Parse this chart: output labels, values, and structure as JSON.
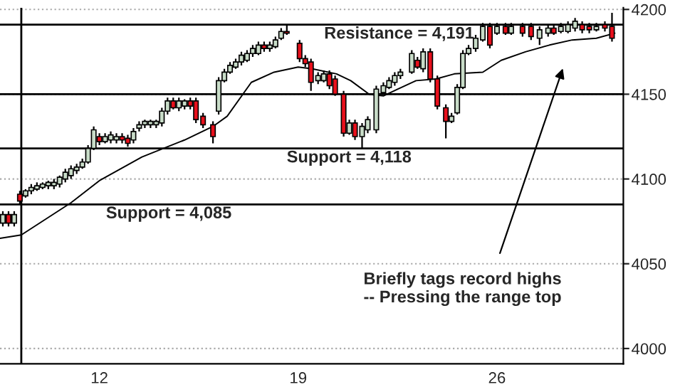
{
  "chart_data": {
    "type": "candlestick",
    "series": [
      {
        "color": "#c8dcc8",
        "x": [
          8.6,
          9.0,
          9.4,
          9.6,
          9.8,
          10.0,
          10.2,
          10.4,
          10.6,
          10.8,
          11.0,
          11.2,
          11.4,
          11.6,
          11.8,
          12.2,
          12.4,
          12.6,
          13.2,
          13.4,
          13.6,
          13.8,
          14.0,
          14.2,
          14.4,
          14.8,
          15.0,
          16.2,
          16.4,
          16.6,
          16.8,
          17.0,
          17.2,
          17.4,
          17.6,
          18.0,
          18.2,
          18.4,
          19.7,
          19.9,
          20.8,
          21.25,
          21.45,
          21.75,
          22.0,
          22.2,
          22.4,
          22.6,
          23.0,
          23.4,
          24.4,
          24.6,
          24.8,
          25.0,
          25.25,
          25.5,
          26.0,
          26.5,
          27.5,
          27.8,
          28.25,
          28.5,
          28.75,
          29.5
        ],
        "ohlc": [
          [
            4074,
            4081,
            4072,
            4079
          ],
          [
            4074,
            4081,
            4072,
            4079
          ],
          [
            4090,
            4094,
            4089,
            4093
          ],
          [
            4093,
            4097,
            4091,
            4095
          ],
          [
            4094,
            4098,
            4093,
            4096
          ],
          [
            4095,
            4098,
            4094,
            4097
          ],
          [
            4096,
            4099,
            4094,
            4098
          ],
          [
            4096,
            4100,
            4094,
            4098
          ],
          [
            4097,
            4102,
            4095,
            4101
          ],
          [
            4100,
            4106,
            4098,
            4104
          ],
          [
            4102,
            4108,
            4100,
            4106
          ],
          [
            4105,
            4109,
            4103,
            4107
          ],
          [
            4107,
            4112,
            4106,
            4110
          ],
          [
            4110,
            4120,
            4109,
            4118
          ],
          [
            4118,
            4131,
            4117,
            4129
          ],
          [
            4122,
            4127,
            4121,
            4125
          ],
          [
            4123,
            4128,
            4121,
            4126
          ],
          [
            4123,
            4127,
            4121,
            4125
          ],
          [
            4123,
            4130,
            4121,
            4128
          ],
          [
            4130,
            4134,
            4128,
            4132
          ],
          [
            4132,
            4135,
            4130,
            4134
          ],
          [
            4132,
            4135,
            4130,
            4134
          ],
          [
            4132,
            4135,
            4130,
            4134
          ],
          [
            4133,
            4142,
            4131,
            4140
          ],
          [
            4140,
            4148,
            4138,
            4146
          ],
          [
            4142,
            4148,
            4140,
            4146
          ],
          [
            4143,
            4147,
            4141,
            4146
          ],
          [
            4140,
            4160,
            4138,
            4158
          ],
          [
            4158,
            4165,
            4157,
            4163
          ],
          [
            4163,
            4169,
            4162,
            4167
          ],
          [
            4166,
            4171,
            4165,
            4169
          ],
          [
            4169,
            4175,
            4167,
            4173
          ],
          [
            4170,
            4176,
            4169,
            4174
          ],
          [
            4174,
            4179,
            4172,
            4177
          ],
          [
            4174,
            4181,
            4173,
            4179
          ],
          [
            4177,
            4181,
            4175,
            4179
          ],
          [
            4178,
            4184,
            4177,
            4182
          ],
          [
            4183,
            4189,
            4182,
            4187
          ],
          [
            4158,
            4163,
            4156,
            4161
          ],
          [
            4158,
            4164,
            4157,
            4162
          ],
          [
            4127,
            4135,
            4126,
            4133
          ],
          [
            4125,
            4133,
            4118,
            4131
          ],
          [
            4129,
            4137,
            4127,
            4135
          ],
          [
            4129,
            4155,
            4127,
            4153
          ],
          [
            4151,
            4157,
            4150,
            4155
          ],
          [
            4154,
            4160,
            4153,
            4158
          ],
          [
            4157,
            4163,
            4155,
            4161
          ],
          [
            4161,
            4165,
            4159,
            4163
          ],
          [
            4163,
            4176,
            4162,
            4174
          ],
          [
            4165,
            4177,
            4163,
            4175
          ],
          [
            4134,
            4139,
            4133,
            4137
          ],
          [
            4139,
            4156,
            4138,
            4154
          ],
          [
            4154,
            4176,
            4153,
            4174
          ],
          [
            4174,
            4179,
            4173,
            4177
          ],
          [
            4177,
            4185,
            4175,
            4183
          ],
          [
            4182,
            4192,
            4181,
            4190
          ],
          [
            4186,
            4192,
            4185,
            4190
          ],
          [
            4186,
            4192,
            4185,
            4190
          ],
          [
            4183,
            4190,
            4179,
            4188
          ],
          [
            4186,
            4191,
            4184,
            4189
          ],
          [
            4187,
            4192,
            4186,
            4190
          ],
          [
            4187,
            4193,
            4186,
            4191
          ],
          [
            4189,
            4195,
            4187,
            4193
          ],
          [
            4188,
            4192,
            4187,
            4190
          ]
        ]
      },
      {
        "color": "#e8101c",
        "x": [
          8.8,
          9.2,
          12.0,
          12.8,
          13.0,
          14.6,
          15.2,
          15.4,
          15.65,
          16.0,
          17.8,
          18.6,
          19.05,
          19.25,
          19.45,
          20.1,
          20.3,
          20.6,
          21.0,
          23.2,
          23.65,
          23.9,
          24.2,
          25.75,
          26.3,
          26.9,
          27.2,
          28.0,
          29.0,
          29.25,
          29.8,
          30.05
        ],
        "ohlc": [
          [
            4079,
            4081,
            4072,
            4074
          ],
          [
            4091,
            4093,
            4085,
            4087
          ],
          [
            4125,
            4127,
            4120,
            4122
          ],
          [
            4125,
            4127,
            4121,
            4123
          ],
          [
            4124,
            4126,
            4119,
            4121
          ],
          [
            4146,
            4148,
            4141,
            4142
          ],
          [
            4146,
            4148,
            4141,
            4143
          ],
          [
            4146,
            4148,
            4133,
            4135
          ],
          [
            4137,
            4139,
            4130,
            4132
          ],
          [
            4132,
            4134,
            4121,
            4125
          ],
          [
            4179,
            4181,
            4175,
            4177
          ],
          [
            4187,
            4191,
            4185,
            4186
          ],
          [
            4180,
            4182,
            4169,
            4171
          ],
          [
            4171,
            4173,
            4166,
            4168
          ],
          [
            4169,
            4171,
            4152,
            4157
          ],
          [
            4162,
            4164,
            4153,
            4155
          ],
          [
            4159,
            4161,
            4149,
            4150
          ],
          [
            4150,
            4152,
            4125,
            4127
          ],
          [
            4133,
            4135,
            4123,
            4125
          ],
          [
            4170,
            4172,
            4165,
            4166
          ],
          [
            4175,
            4177,
            4157,
            4159
          ],
          [
            4159,
            4161,
            4141,
            4143
          ],
          [
            4142,
            4144,
            4124,
            4134
          ],
          [
            4190,
            4192,
            4177,
            4179
          ],
          [
            4190,
            4192,
            4185,
            4186
          ],
          [
            4190,
            4192,
            4184,
            4186
          ],
          [
            4190,
            4192,
            4182,
            4184
          ],
          [
            4189,
            4191,
            4185,
            4186
          ],
          [
            4191,
            4193,
            4186,
            4188
          ],
          [
            4190,
            4192,
            4186,
            4188
          ],
          [
            4191,
            4193,
            4187,
            4189
          ],
          [
            4190,
            4198,
            4181,
            4183
          ]
        ]
      },
      {
        "type": "line",
        "color": "#000000",
        "x": [
          8.5,
          9.25,
          11.0,
          12.0,
          13.5,
          15.0,
          16.0,
          16.5,
          17.35,
          18.15,
          19.0,
          19.5,
          20.35,
          20.85,
          21.5,
          22.0,
          22.5,
          23.15,
          23.85,
          24.5,
          25.5,
          26.15,
          27.0,
          27.85,
          28.65,
          29.5,
          30.15
        ],
        "values": [
          4065,
          4067,
          4086,
          4099,
          4113,
          4123,
          4131,
          4137,
          4157,
          4163,
          4166,
          4165,
          4162,
          4158,
          4150,
          4149,
          4153,
          4158,
          4159,
          4162,
          4163,
          4170,
          4175,
          4179,
          4182,
          4183,
          4186
        ]
      }
    ],
    "xlim": [
      8.5,
      30.45
    ],
    "xticks": [
      12,
      19,
      26
    ],
    "ylim": [
      3991,
      4201
    ],
    "yticks": [
      4000,
      4050,
      4100,
      4150,
      4200
    ],
    "grid": "y",
    "legend": false,
    "ref_lines": [
      {
        "axis": "y",
        "value": 4191,
        "label": "Resistance = 4,191",
        "color": "#000000"
      },
      {
        "axis": "y",
        "value": 4150,
        "label": null,
        "color": "#000000"
      },
      {
        "axis": "y",
        "value": 4118,
        "label": "Support = 4,118",
        "color": "#000000"
      },
      {
        "axis": "y",
        "value": 4085,
        "label": "Support = 4,085",
        "color": "#000000"
      },
      {
        "axis": "x",
        "value": 9.25,
        "label": null,
        "color": "#000000"
      }
    ],
    "annotations": [
      "Briefly tags record highs\n-- Pressing the range top"
    ]
  }
}
